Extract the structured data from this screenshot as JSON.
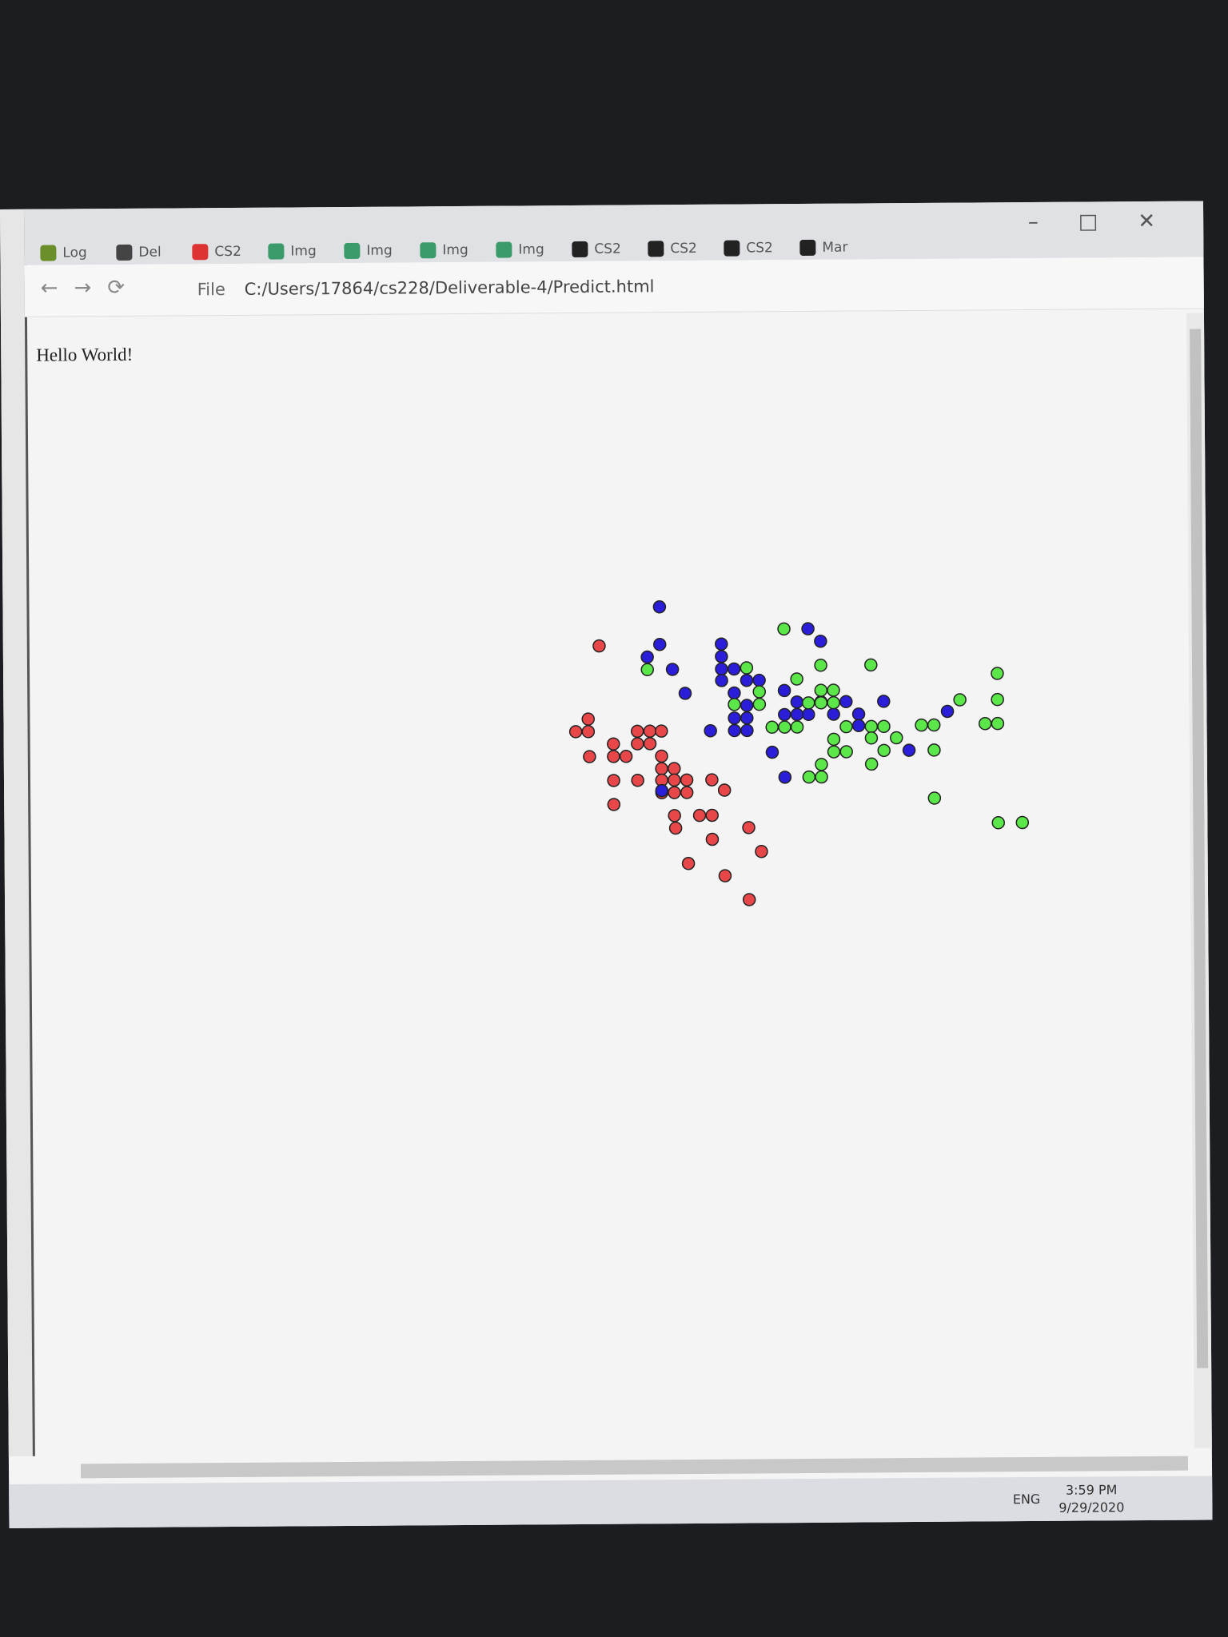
{
  "browser": {
    "tabs": [
      "Log",
      "Del",
      "CS2",
      "Img",
      "Img",
      "Img",
      "Img",
      "CS2",
      "CS2",
      "CS2",
      "Mar"
    ],
    "file_label": "File",
    "url": "C:/Users/17864/cs228/Deliverable-4/Predict.html",
    "page_text": "Hello World!",
    "language": "ENG",
    "time": "3:59 PM",
    "date": "9/29/2020"
  },
  "chart_data": {
    "type": "scatter",
    "xlim": [
      520,
      990
    ],
    "ylim": [
      0,
      320
    ],
    "series": [
      {
        "color": "#e8474a",
        "x": [
          571,
          560,
          548,
          560,
          561,
          584,
          584,
          596,
          607,
          619,
          630,
          607,
          619,
          630,
          630,
          642,
          584,
          607,
          630,
          642,
          654,
          642,
          654,
          678,
          690,
          630,
          584,
          642,
          666,
          678,
          643,
          678,
          713,
          725,
          655,
          690,
          713
        ],
        "values": [
          257,
          187,
          175,
          175,
          151,
          163,
          151,
          151,
          175,
          175,
          175,
          163,
          163,
          151,
          139,
          139,
          128,
          128,
          128,
          128,
          128,
          116,
          116,
          128,
          118,
          116,
          105,
          94,
          94,
          94,
          82,
          71,
          82,
          59,
          48,
          36,
          13
        ]
      },
      {
        "color": "#2a1ed8",
        "x": [
          629,
          771,
          783,
          629,
          617,
          641,
          688,
          688,
          688,
          700,
          688,
          712,
          724,
          700,
          748,
          653,
          712,
          700,
          712,
          700,
          712,
          677,
          748,
          760,
          771,
          760,
          783,
          807,
          843,
          819,
          795,
          819,
          736,
          748,
          867,
          630,
          904
        ],
        "values": [
          294,
          272,
          260,
          258,
          246,
          234,
          258,
          246,
          234,
          234,
          223,
          223,
          223,
          211,
          213,
          211,
          199,
          187,
          187,
          175,
          175,
          175,
          190,
          190,
          190,
          202,
          202,
          202,
          202,
          190,
          190,
          179,
          154,
          130,
          155,
          118,
          192
        ]
      },
      {
        "color": "#5be64a",
        "x": [
          748,
          783,
          831,
          617,
          712,
          760,
          724,
          783,
          795,
          724,
          700,
          771,
          783,
          795,
          736,
          748,
          760,
          807,
          831,
          843,
          879,
          891,
          916,
          952,
          952,
          940,
          952,
          795,
          831,
          855,
          795,
          807,
          843,
          891,
          831,
          783,
          771,
          783,
          891,
          952,
          975
        ],
        "values": [
          272,
          237,
          237,
          234,
          235,
          224,
          212,
          213,
          213,
          200,
          200,
          201,
          201,
          201,
          178,
          178,
          178,
          178,
          178,
          178,
          179,
          179,
          203,
          228,
          203,
          180,
          180,
          166,
          167,
          167,
          154,
          154,
          155,
          155,
          142,
          142,
          130,
          130,
          109,
          85,
          85
        ]
      }
    ]
  }
}
